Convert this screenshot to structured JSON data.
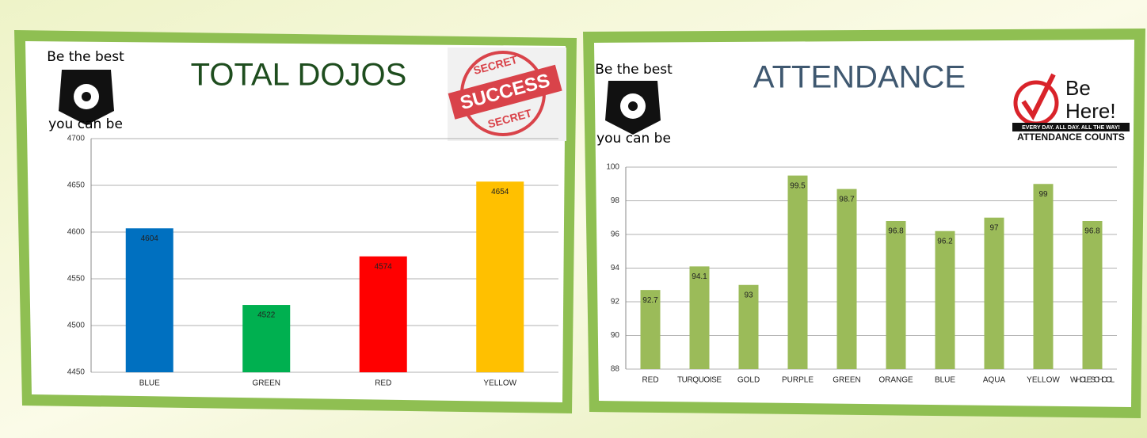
{
  "chart_data": [
    {
      "type": "bar",
      "title": "TOTAL DOJOS",
      "annotations": [
        "Be the best",
        "you can be",
        "SECRET",
        "SUCCESS",
        "SECRET"
      ],
      "categories": [
        "BLUE",
        "GREEN",
        "RED",
        "YELLOW"
      ],
      "values": [
        4604,
        4522,
        4574,
        4654
      ],
      "colors": [
        "#0070c0",
        "#00b050",
        "#ff0000",
        "#ffc000"
      ],
      "ylim": [
        4450,
        4700
      ],
      "yticks": [
        4450,
        4500,
        4550,
        4600,
        4650,
        4700
      ],
      "grid": true
    },
    {
      "type": "bar",
      "title": "ATTENDANCE",
      "annotations": [
        "Be the best",
        "you can be",
        "Be",
        "Here!",
        "EVERY DAY. ALL DAY. ALL THE WAY!",
        "ATTENDANCE COUNTS"
      ],
      "categories": [
        "RED",
        "TURQUOISE",
        "GOLD",
        "PURPLE",
        "GREEN",
        "ORANGE",
        "BLUE",
        "AQUA",
        "YELLOW",
        "WHOLE SCHOOL"
      ],
      "values": [
        92.7,
        94.1,
        93,
        99.5,
        98.7,
        96.8,
        96.2,
        97,
        99,
        96.8
      ],
      "color": "#9bbb59",
      "ylim": [
        88,
        100
      ],
      "yticks": [
        88,
        90,
        92,
        94,
        96,
        98,
        100
      ],
      "grid": true
    }
  ]
}
